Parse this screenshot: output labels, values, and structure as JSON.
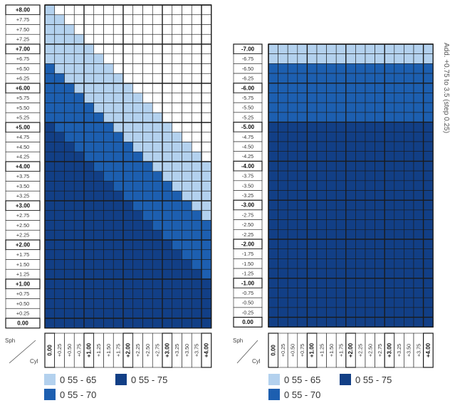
{
  "colors": {
    "light": "#b3d1ee",
    "medium": "#1d5fb0",
    "dark": "#123f86",
    "grid": "#1a1a1a"
  },
  "legend": [
    {
      "label": "0 55 - 65",
      "color_key": "light"
    },
    {
      "label": "0 55 - 75",
      "color_key": "dark"
    },
    {
      "label": "0 55 - 70",
      "color_key": "medium"
    }
  ],
  "chart_data": [
    {
      "type": "heatmap",
      "name": "left",
      "xlabel": "Cyl",
      "ylabel": "Sph",
      "x": [
        "0.00",
        "+0.25",
        "+0.50",
        "+0.75",
        "+1.00",
        "+1.25",
        "+1.50",
        "+1.75",
        "+2.00",
        "+2.25",
        "+2.50",
        "+2.75",
        "+3.00",
        "+3.25",
        "+3.50",
        "+3.75",
        "+4.00"
      ],
      "y": [
        "+8.00",
        "+7.75",
        "+7.50",
        "+7.25",
        "+7.00",
        "+6.75",
        "+6.50",
        "+6.25",
        "+6.00",
        "+5.75",
        "+5.50",
        "+5.25",
        "+5.00",
        "+4.75",
        "+4.50",
        "+4.25",
        "+4.00",
        "+3.75",
        "+3.50",
        "+3.25",
        "+3.00",
        "+2.75",
        "+2.50",
        "+2.25",
        "+2.00",
        "+1.75",
        "+1.50",
        "+1.25",
        "+1.00",
        "+0.75",
        "+0.50",
        "+0.25",
        "0.00"
      ],
      "values": [
        [
          1,
          0,
          0,
          0,
          0,
          0,
          0,
          0,
          0,
          0,
          0,
          0,
          0,
          0,
          0,
          0,
          0
        ],
        [
          1,
          1,
          0,
          0,
          0,
          0,
          0,
          0,
          0,
          0,
          0,
          0,
          0,
          0,
          0,
          0,
          0
        ],
        [
          1,
          1,
          1,
          0,
          0,
          0,
          0,
          0,
          0,
          0,
          0,
          0,
          0,
          0,
          0,
          0,
          0
        ],
        [
          1,
          1,
          1,
          1,
          0,
          0,
          0,
          0,
          0,
          0,
          0,
          0,
          0,
          0,
          0,
          0,
          0
        ],
        [
          1,
          1,
          1,
          1,
          1,
          0,
          0,
          0,
          0,
          0,
          0,
          0,
          0,
          0,
          0,
          0,
          0
        ],
        [
          1,
          1,
          1,
          1,
          1,
          1,
          0,
          0,
          0,
          0,
          0,
          0,
          0,
          0,
          0,
          0,
          0
        ],
        [
          2,
          1,
          1,
          1,
          1,
          1,
          1,
          0,
          0,
          0,
          0,
          0,
          0,
          0,
          0,
          0,
          0
        ],
        [
          2,
          2,
          1,
          1,
          1,
          1,
          1,
          1,
          0,
          0,
          0,
          0,
          0,
          0,
          0,
          0,
          0
        ],
        [
          2,
          2,
          2,
          1,
          1,
          1,
          1,
          1,
          1,
          0,
          0,
          0,
          0,
          0,
          0,
          0,
          0
        ],
        [
          2,
          2,
          2,
          2,
          1,
          1,
          1,
          1,
          1,
          1,
          0,
          0,
          0,
          0,
          0,
          0,
          0
        ],
        [
          2,
          2,
          2,
          2,
          2,
          1,
          1,
          1,
          1,
          1,
          1,
          0,
          0,
          0,
          0,
          0,
          0
        ],
        [
          2,
          2,
          2,
          2,
          2,
          2,
          1,
          1,
          1,
          1,
          1,
          1,
          0,
          0,
          0,
          0,
          0
        ],
        [
          3,
          2,
          2,
          2,
          2,
          2,
          2,
          1,
          1,
          1,
          1,
          1,
          1,
          0,
          0,
          0,
          0
        ],
        [
          3,
          3,
          2,
          2,
          2,
          2,
          2,
          2,
          1,
          1,
          1,
          1,
          1,
          1,
          0,
          0,
          0
        ],
        [
          3,
          3,
          3,
          2,
          2,
          2,
          2,
          2,
          2,
          1,
          1,
          1,
          1,
          1,
          1,
          0,
          0
        ],
        [
          3,
          3,
          3,
          3,
          2,
          2,
          2,
          2,
          2,
          2,
          1,
          1,
          1,
          1,
          1,
          1,
          0
        ],
        [
          3,
          3,
          3,
          3,
          3,
          2,
          2,
          2,
          2,
          2,
          2,
          1,
          1,
          1,
          1,
          1,
          1
        ],
        [
          3,
          3,
          3,
          3,
          3,
          3,
          2,
          2,
          2,
          2,
          2,
          2,
          1,
          1,
          1,
          1,
          1
        ],
        [
          3,
          3,
          3,
          3,
          3,
          3,
          3,
          2,
          2,
          2,
          2,
          2,
          2,
          1,
          1,
          1,
          1
        ],
        [
          3,
          3,
          3,
          3,
          3,
          3,
          3,
          3,
          2,
          2,
          2,
          2,
          2,
          2,
          1,
          1,
          1
        ],
        [
          3,
          3,
          3,
          3,
          3,
          3,
          3,
          3,
          3,
          2,
          2,
          2,
          2,
          2,
          2,
          1,
          1
        ],
        [
          3,
          3,
          3,
          3,
          3,
          3,
          3,
          3,
          3,
          3,
          2,
          2,
          2,
          2,
          2,
          2,
          1
        ],
        [
          3,
          3,
          3,
          3,
          3,
          3,
          3,
          3,
          3,
          3,
          3,
          2,
          2,
          2,
          2,
          2,
          2
        ],
        [
          3,
          3,
          3,
          3,
          3,
          3,
          3,
          3,
          3,
          3,
          3,
          3,
          2,
          2,
          2,
          2,
          2
        ],
        [
          3,
          3,
          3,
          3,
          3,
          3,
          3,
          3,
          3,
          3,
          3,
          3,
          3,
          2,
          2,
          2,
          2
        ],
        [
          3,
          3,
          3,
          3,
          3,
          3,
          3,
          3,
          3,
          3,
          3,
          3,
          3,
          3,
          2,
          2,
          2
        ],
        [
          3,
          3,
          3,
          3,
          3,
          3,
          3,
          3,
          3,
          3,
          3,
          3,
          3,
          3,
          3,
          2,
          2
        ],
        [
          3,
          3,
          3,
          3,
          3,
          3,
          3,
          3,
          3,
          3,
          3,
          3,
          3,
          3,
          3,
          3,
          2
        ],
        [
          3,
          3,
          3,
          3,
          3,
          3,
          3,
          3,
          3,
          3,
          3,
          3,
          3,
          3,
          3,
          3,
          3
        ],
        [
          3,
          3,
          3,
          3,
          3,
          3,
          3,
          3,
          3,
          3,
          3,
          3,
          3,
          3,
          3,
          3,
          3
        ],
        [
          3,
          3,
          3,
          3,
          3,
          3,
          3,
          3,
          3,
          3,
          3,
          3,
          3,
          3,
          3,
          3,
          3
        ],
        [
          3,
          3,
          3,
          3,
          3,
          3,
          3,
          3,
          3,
          3,
          3,
          3,
          3,
          3,
          3,
          3,
          3
        ],
        [
          3,
          3,
          3,
          3,
          3,
          3,
          3,
          3,
          3,
          3,
          3,
          3,
          3,
          3,
          3,
          3,
          3
        ]
      ]
    },
    {
      "type": "heatmap",
      "name": "right",
      "xlabel": "Cyl",
      "ylabel": "Sph",
      "side_label": "Add. +0.75 to 3.5 (step 0.25)",
      "x": [
        "0.00",
        "+0.25",
        "+0.50",
        "+0.75",
        "+1.00",
        "+1.25",
        "+1.50",
        "+1.75",
        "+2.00",
        "+2.25",
        "+2.50",
        "+2.75",
        "+3.00",
        "+3.25",
        "+3.50",
        "+3.75",
        "+4.00"
      ],
      "y": [
        "-7.00",
        "-6.75",
        "-6.50",
        "-6.25",
        "-6.00",
        "-5.75",
        "-5.50",
        "-5.25",
        "-5.00",
        "-4.75",
        "-4.50",
        "-4.25",
        "-4.00",
        "-3.75",
        "-3.50",
        "-3.25",
        "-3.00",
        "-2.75",
        "-2.50",
        "-2.25",
        "-2.00",
        "-1.75",
        "-1.50",
        "-1.25",
        "-1.00",
        "-0.75",
        "-0.50",
        "-0.25",
        "0.00"
      ],
      "values": [
        [
          1,
          1,
          1,
          1,
          1,
          1,
          1,
          1,
          1,
          1,
          1,
          1,
          1,
          1,
          1,
          1,
          1
        ],
        [
          1,
          1,
          1,
          1,
          1,
          1,
          1,
          1,
          1,
          1,
          1,
          1,
          1,
          1,
          1,
          1,
          1
        ],
        [
          2,
          2,
          2,
          2,
          2,
          2,
          2,
          2,
          2,
          2,
          2,
          2,
          2,
          2,
          2,
          2,
          2
        ],
        [
          2,
          2,
          2,
          2,
          2,
          2,
          2,
          2,
          2,
          2,
          2,
          2,
          2,
          2,
          2,
          2,
          2
        ],
        [
          2,
          2,
          2,
          2,
          2,
          2,
          2,
          2,
          2,
          2,
          2,
          2,
          2,
          2,
          2,
          2,
          2
        ],
        [
          2,
          2,
          2,
          2,
          2,
          2,
          2,
          2,
          2,
          2,
          2,
          2,
          2,
          2,
          2,
          2,
          2
        ],
        [
          2,
          2,
          2,
          2,
          2,
          2,
          2,
          2,
          2,
          2,
          2,
          2,
          2,
          2,
          2,
          2,
          2
        ],
        [
          2,
          2,
          2,
          2,
          2,
          2,
          2,
          2,
          2,
          2,
          2,
          2,
          2,
          2,
          2,
          2,
          2
        ],
        [
          3,
          3,
          3,
          3,
          3,
          3,
          3,
          3,
          3,
          3,
          3,
          3,
          3,
          3,
          3,
          3,
          3
        ],
        [
          3,
          3,
          3,
          3,
          3,
          3,
          3,
          3,
          3,
          3,
          3,
          3,
          3,
          3,
          3,
          3,
          3
        ],
        [
          3,
          3,
          3,
          3,
          3,
          3,
          3,
          3,
          3,
          3,
          3,
          3,
          3,
          3,
          3,
          3,
          3
        ],
        [
          3,
          3,
          3,
          3,
          3,
          3,
          3,
          3,
          3,
          3,
          3,
          3,
          3,
          3,
          3,
          3,
          3
        ],
        [
          3,
          3,
          3,
          3,
          3,
          3,
          3,
          3,
          3,
          3,
          3,
          3,
          3,
          3,
          3,
          3,
          3
        ],
        [
          3,
          3,
          3,
          3,
          3,
          3,
          3,
          3,
          3,
          3,
          3,
          3,
          3,
          3,
          3,
          3,
          3
        ],
        [
          3,
          3,
          3,
          3,
          3,
          3,
          3,
          3,
          3,
          3,
          3,
          3,
          3,
          3,
          3,
          3,
          3
        ],
        [
          3,
          3,
          3,
          3,
          3,
          3,
          3,
          3,
          3,
          3,
          3,
          3,
          3,
          3,
          3,
          3,
          3
        ],
        [
          3,
          3,
          3,
          3,
          3,
          3,
          3,
          3,
          3,
          3,
          3,
          3,
          3,
          3,
          3,
          3,
          3
        ],
        [
          3,
          3,
          3,
          3,
          3,
          3,
          3,
          3,
          3,
          3,
          3,
          3,
          3,
          3,
          3,
          3,
          3
        ],
        [
          3,
          3,
          3,
          3,
          3,
          3,
          3,
          3,
          3,
          3,
          3,
          3,
          3,
          3,
          3,
          3,
          3
        ],
        [
          3,
          3,
          3,
          3,
          3,
          3,
          3,
          3,
          3,
          3,
          3,
          3,
          3,
          3,
          3,
          3,
          3
        ],
        [
          3,
          3,
          3,
          3,
          3,
          3,
          3,
          3,
          3,
          3,
          3,
          3,
          3,
          3,
          3,
          3,
          3
        ],
        [
          3,
          3,
          3,
          3,
          3,
          3,
          3,
          3,
          3,
          3,
          3,
          3,
          3,
          3,
          3,
          3,
          3
        ],
        [
          3,
          3,
          3,
          3,
          3,
          3,
          3,
          3,
          3,
          3,
          3,
          3,
          3,
          3,
          3,
          3,
          3
        ],
        [
          3,
          3,
          3,
          3,
          3,
          3,
          3,
          3,
          3,
          3,
          3,
          3,
          3,
          3,
          3,
          3,
          3
        ],
        [
          3,
          3,
          3,
          3,
          3,
          3,
          3,
          3,
          3,
          3,
          3,
          3,
          3,
          3,
          3,
          3,
          3
        ],
        [
          3,
          3,
          3,
          3,
          3,
          3,
          3,
          3,
          3,
          3,
          3,
          3,
          3,
          3,
          3,
          3,
          3
        ],
        [
          3,
          3,
          3,
          3,
          3,
          3,
          3,
          3,
          3,
          3,
          3,
          3,
          3,
          3,
          3,
          3,
          3
        ],
        [
          3,
          3,
          3,
          3,
          3,
          3,
          3,
          3,
          3,
          3,
          3,
          3,
          3,
          3,
          3,
          3,
          3
        ],
        [
          3,
          3,
          3,
          3,
          3,
          3,
          3,
          3,
          3,
          3,
          3,
          3,
          3,
          3,
          3,
          3,
          3
        ]
      ]
    }
  ]
}
